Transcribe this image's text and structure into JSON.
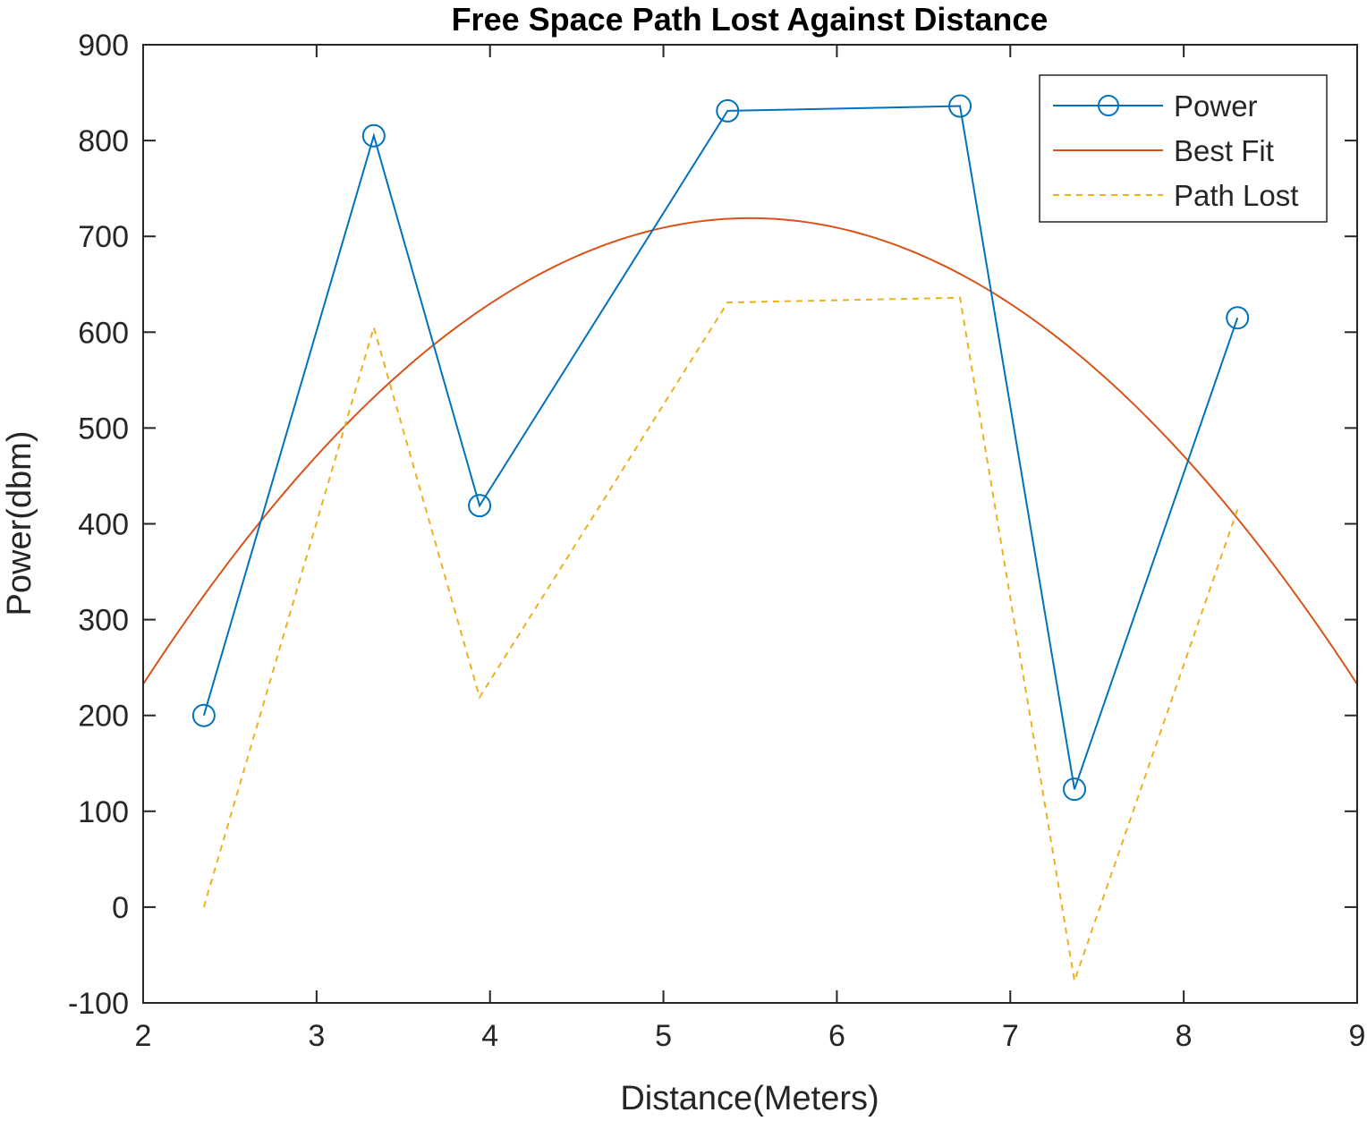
{
  "chart_data": {
    "type": "line",
    "title": "Free Space Path Lost Against Distance",
    "xlabel": "Distance(Meters)",
    "ylabel": "Power(dbm)",
    "xlim": [
      2,
      9
    ],
    "ylim": [
      -100,
      900
    ],
    "xticks": [
      "2",
      "3",
      "4",
      "5",
      "6",
      "7",
      "8",
      "9"
    ],
    "yticks": [
      "-100",
      "0",
      "100",
      "200",
      "300",
      "400",
      "500",
      "600",
      "700",
      "800",
      "900"
    ],
    "grid": false,
    "legend_position": "top-right",
    "series": [
      {
        "name": "Power",
        "style": "solid-circle-markers",
        "color": "#0072BD",
        "x": [
          2.35,
          3.33,
          3.94,
          5.37,
          6.71,
          7.37,
          8.31
        ],
        "y": [
          200,
          805,
          419,
          831,
          836,
          123,
          615
        ]
      },
      {
        "name": "Best Fit",
        "style": "solid",
        "color": "#D95319",
        "quadratic": {
          "vertex_x": 5.5,
          "vertex_y": 719,
          "a": -39.7
        }
      },
      {
        "name": "Path Lost",
        "style": "dashed",
        "color": "#EDB120",
        "x": [
          2.35,
          3.33,
          3.94,
          5.37,
          6.71,
          7.37,
          8.31
        ],
        "y": [
          0,
          605,
          219,
          631,
          636,
          -77,
          415
        ]
      }
    ]
  }
}
